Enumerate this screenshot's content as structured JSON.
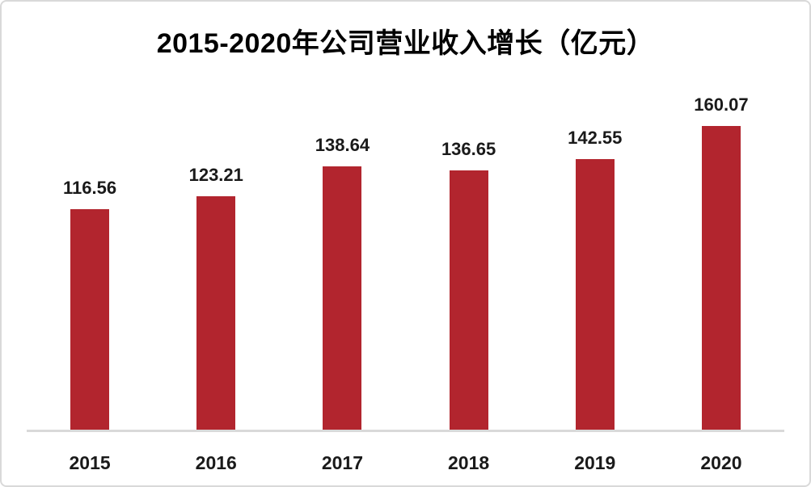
{
  "chart_data": {
    "type": "bar",
    "title": "2015-2020年公司营业收入增长（亿元）",
    "categories": [
      "2015",
      "2016",
      "2017",
      "2018",
      "2019",
      "2020"
    ],
    "values": [
      116.56,
      123.21,
      138.64,
      136.65,
      142.55,
      160.07
    ],
    "value_labels": [
      "116.56",
      "123.21",
      "138.64",
      "136.65",
      "142.55",
      "160.07"
    ],
    "xlabel": "",
    "ylabel": "",
    "ylim": [
      0,
      170
    ],
    "grid": false,
    "legend": false,
    "data_labels": true,
    "bar_color": "#b2252e",
    "axis_line_color": "#d9d9d9",
    "text_color": "#1a1a1a",
    "title_color": "#000000",
    "background_color": "#ffffff",
    "border_color": "#d9d9d9"
  }
}
